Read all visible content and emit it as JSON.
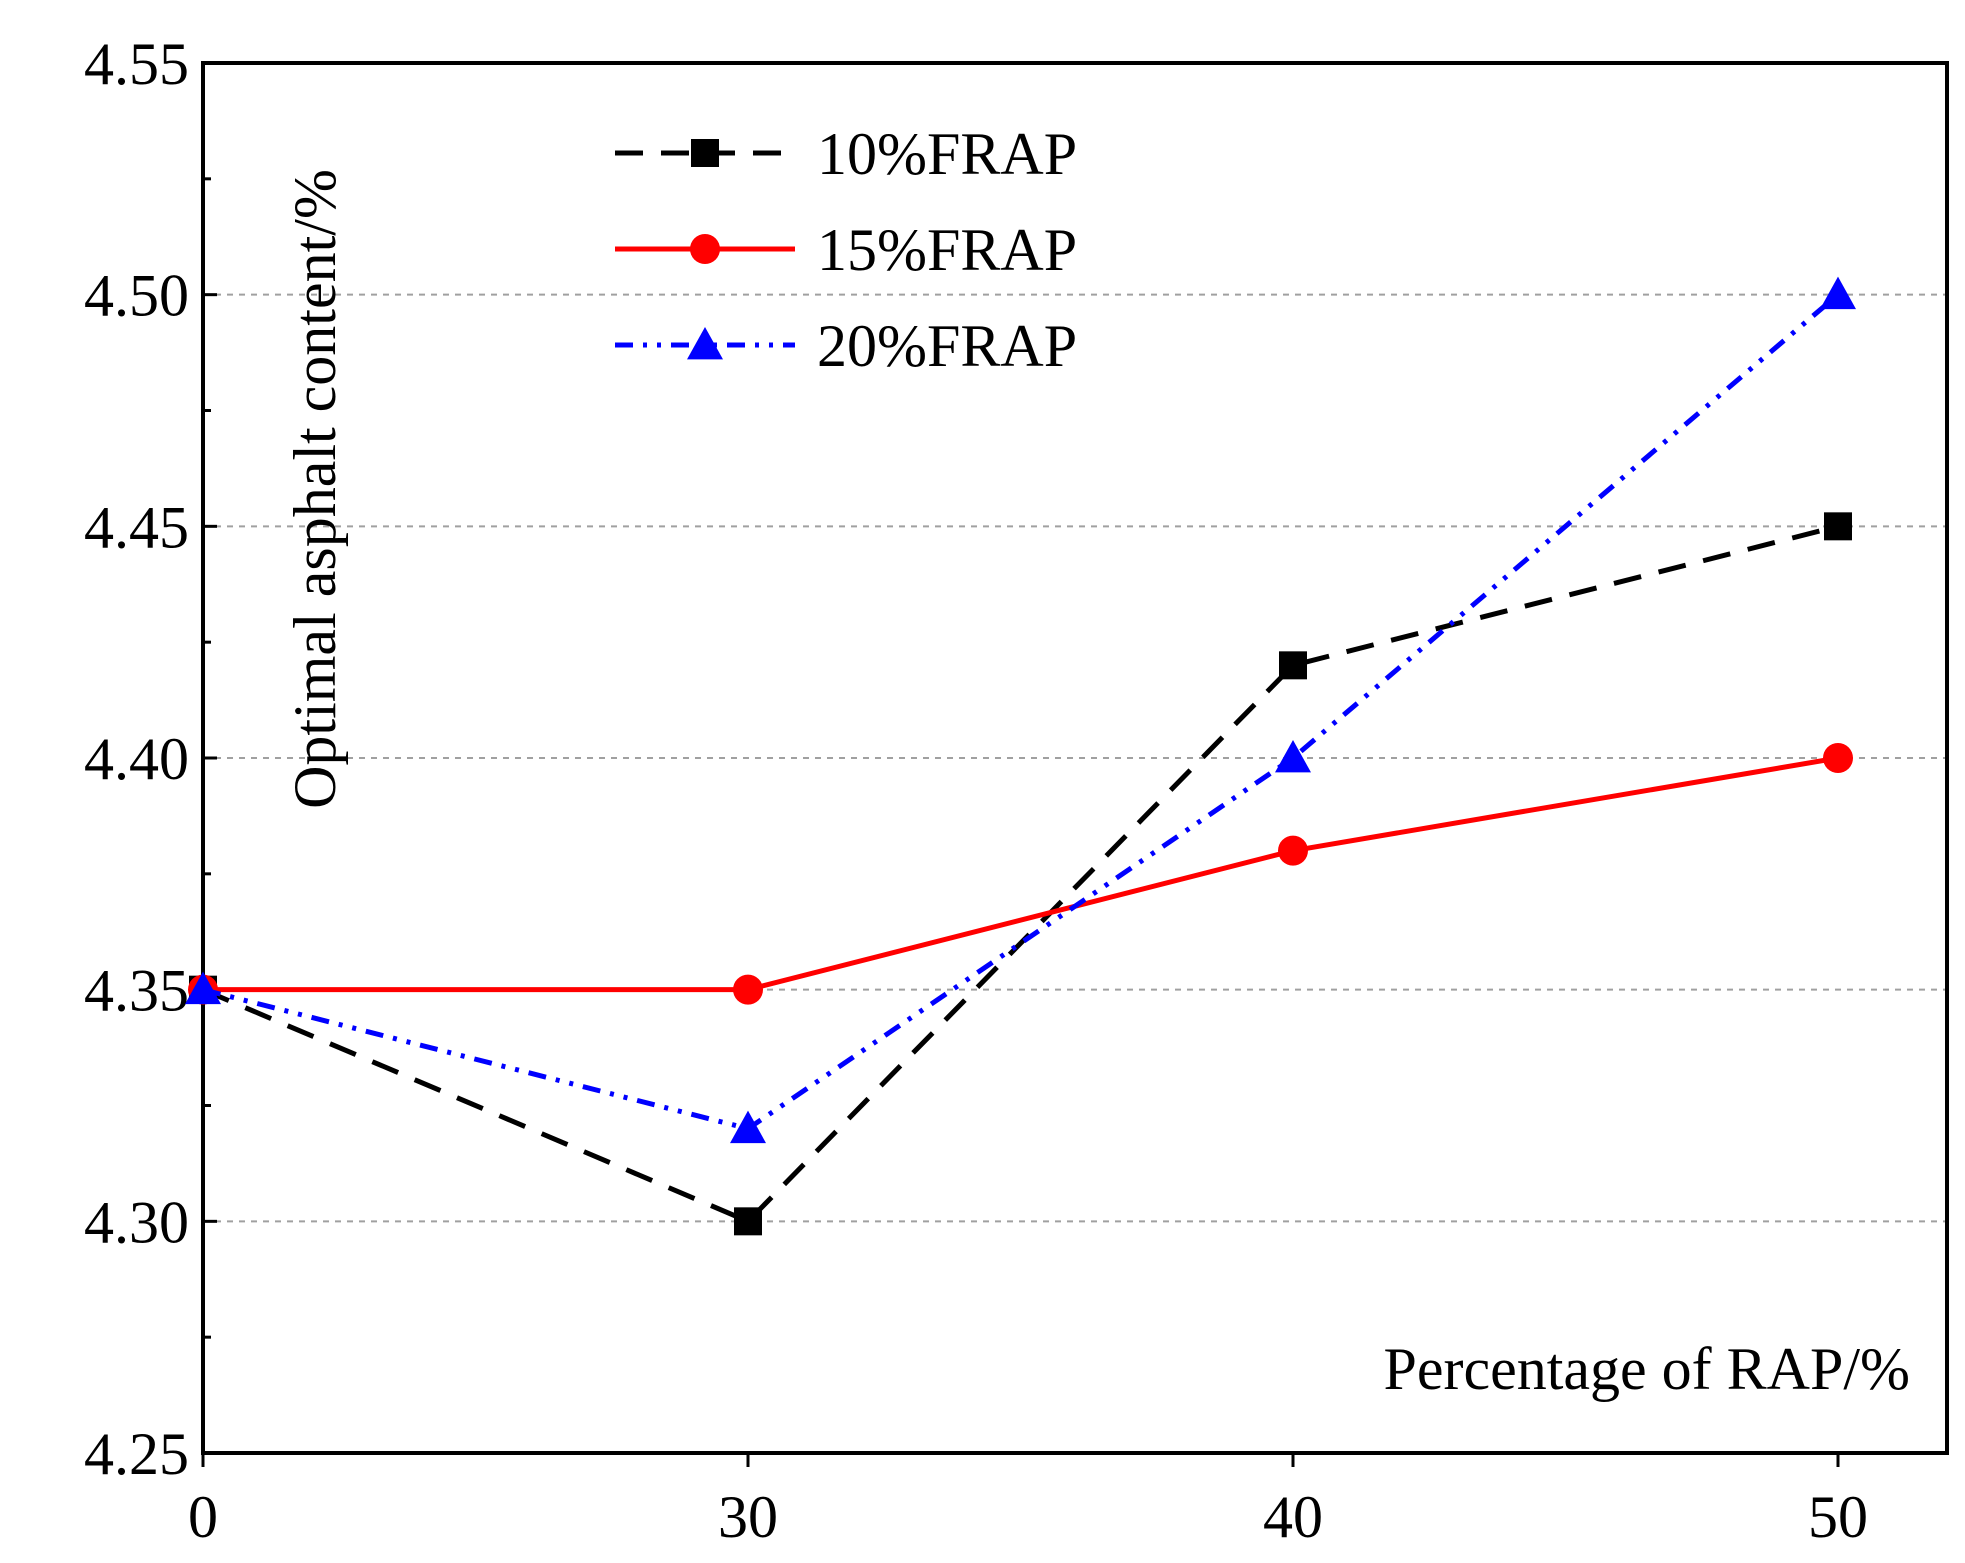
{
  "chart_data": {
    "type": "line",
    "title": "",
    "xlabel": "Percentage of RAP/%",
    "ylabel": "Optimal asphalt content/%",
    "categories": [
      "0",
      "30",
      "40",
      "50"
    ],
    "ylim": [
      4.25,
      4.55
    ],
    "y_ticks": [
      "4.25",
      "4.30",
      "4.35",
      "4.40",
      "4.45",
      "4.50",
      "4.55"
    ],
    "grid": "horizontal dashed",
    "legend_position": "top-left",
    "series": [
      {
        "name": "10%FRAP",
        "values": [
          4.35,
          4.3,
          4.42,
          4.45
        ],
        "color": "#000000",
        "line_style": "dash",
        "marker": "square"
      },
      {
        "name": "15%FRAP",
        "values": [
          4.35,
          4.35,
          4.38,
          4.4
        ],
        "color": "#ff0000",
        "line_style": "solid",
        "marker": "circle"
      },
      {
        "name": "20%FRAP",
        "values": [
          4.35,
          4.32,
          4.4,
          4.5
        ],
        "color": "#0000ff",
        "line_style": "dash-dot-dot",
        "marker": "triangle"
      }
    ]
  }
}
